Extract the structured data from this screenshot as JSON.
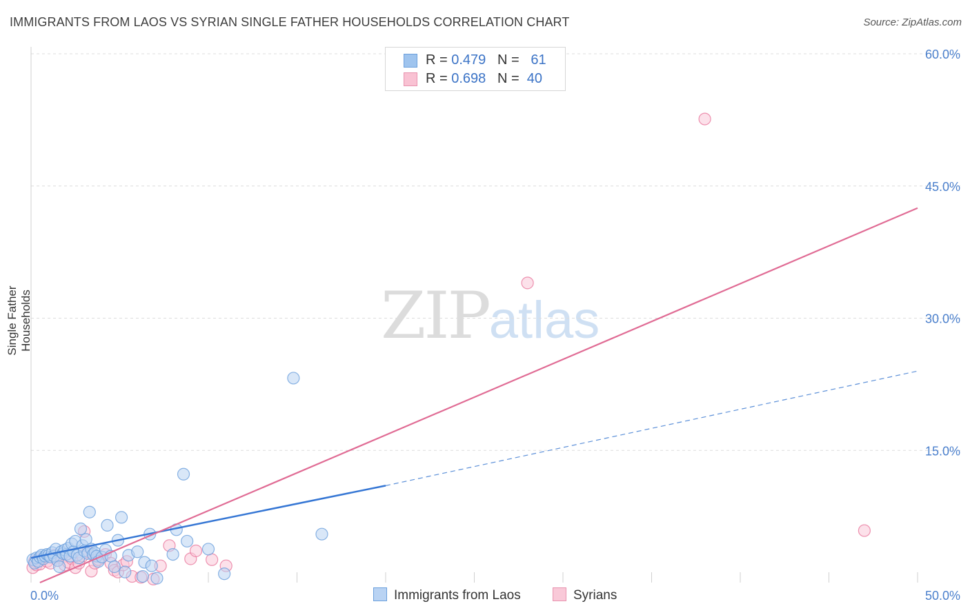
{
  "title": "IMMIGRANTS FROM LAOS VS SYRIAN SINGLE FATHER HOUSEHOLDS CORRELATION CHART",
  "source": "Source: ZipAtlas.com",
  "watermark": {
    "zip": "ZIP",
    "atlas": "atlas"
  },
  "legend": {
    "rows": [
      {
        "r_label": "R = ",
        "r_value": "0.479",
        "n_label": "N = ",
        "n_value": "61",
        "color": "#9fc4ee",
        "border": "#6a9fdc"
      },
      {
        "r_label": "R = ",
        "r_value": "0.698",
        "n_label": "N = ",
        "n_value": "40",
        "color": "#f9c2d3",
        "border": "#e892ae"
      }
    ]
  },
  "chart_data": {
    "type": "scatter",
    "title": "IMMIGRANTS FROM LAOS VS SYRIAN SINGLE FATHER HOUSEHOLDS CORRELATION CHART",
    "ylabel": "Single Father Households",
    "xlabel": "",
    "xlim": [
      0,
      50
    ],
    "ylim": [
      0,
      60
    ],
    "x_tick_labels": [
      {
        "value": 0,
        "label": "0.0%"
      },
      {
        "value": 50,
        "label": "50.0%"
      }
    ],
    "y_tick_labels": [
      {
        "value": 15,
        "label": "15.0%"
      },
      {
        "value": 30,
        "label": "30.0%"
      },
      {
        "value": 45,
        "label": "45.0%"
      },
      {
        "value": 60,
        "label": "60.0%"
      }
    ],
    "series": [
      {
        "name": "Immigrants from Laos",
        "color": "#6a9fdc",
        "fill": "#b9d3f3",
        "points": [
          [
            0.1,
            2.6
          ],
          [
            0.2,
            2.2
          ],
          [
            0.3,
            2.8
          ],
          [
            0.4,
            2.4
          ],
          [
            0.5,
            2.9
          ],
          [
            0.6,
            3.1
          ],
          [
            0.7,
            2.7
          ],
          [
            0.8,
            3.0
          ],
          [
            0.9,
            3.2
          ],
          [
            1.0,
            3.1
          ],
          [
            1.1,
            2.9
          ],
          [
            1.2,
            3.4
          ],
          [
            1.3,
            3.0
          ],
          [
            1.4,
            3.8
          ],
          [
            1.5,
            2.5
          ],
          [
            1.6,
            1.8
          ],
          [
            1.7,
            3.5
          ],
          [
            1.8,
            3.3
          ],
          [
            1.9,
            3.7
          ],
          [
            2.0,
            3.2
          ],
          [
            2.1,
            3.9
          ],
          [
            2.2,
            3.0
          ],
          [
            2.3,
            4.4
          ],
          [
            2.4,
            3.5
          ],
          [
            2.5,
            4.7
          ],
          [
            2.6,
            3.1
          ],
          [
            2.7,
            2.8
          ],
          [
            2.8,
            6.1
          ],
          [
            2.9,
            4.2
          ],
          [
            3.0,
            3.6
          ],
          [
            3.1,
            4.9
          ],
          [
            3.2,
            3.3
          ],
          [
            3.3,
            8.0
          ],
          [
            3.4,
            3.8
          ],
          [
            3.5,
            3.2
          ],
          [
            3.6,
            3.4
          ],
          [
            3.7,
            3.0
          ],
          [
            3.8,
            2.4
          ],
          [
            4.0,
            2.9
          ],
          [
            4.2,
            3.7
          ],
          [
            4.3,
            6.5
          ],
          [
            4.5,
            3.0
          ],
          [
            4.7,
            1.8
          ],
          [
            4.9,
            4.8
          ],
          [
            5.1,
            7.4
          ],
          [
            5.3,
            1.2
          ],
          [
            5.5,
            3.1
          ],
          [
            6.0,
            3.5
          ],
          [
            6.3,
            0.7
          ],
          [
            6.4,
            2.3
          ],
          [
            6.7,
            5.5
          ],
          [
            6.8,
            1.9
          ],
          [
            7.1,
            0.5
          ],
          [
            8.0,
            3.2
          ],
          [
            8.2,
            6.0
          ],
          [
            8.6,
            12.3
          ],
          [
            8.8,
            4.7
          ],
          [
            10.0,
            3.8
          ],
          [
            10.9,
            1.0
          ],
          [
            16.4,
            5.5
          ],
          [
            14.8,
            23.2
          ]
        ],
        "trend": {
          "x0": 0,
          "y0": 2.8,
          "x1": 20,
          "y1": 11.0,
          "dash_x1": 50,
          "dash_y1": 24.0
        }
      },
      {
        "name": "Syrians",
        "color": "#e8779c",
        "fill": "#f9c9d8",
        "points": [
          [
            0.1,
            1.7
          ],
          [
            0.2,
            2.4
          ],
          [
            0.3,
            2.0
          ],
          [
            0.4,
            2.6
          ],
          [
            0.5,
            2.1
          ],
          [
            0.7,
            2.8
          ],
          [
            0.9,
            2.4
          ],
          [
            1.1,
            2.2
          ],
          [
            1.3,
            3.1
          ],
          [
            1.5,
            2.5
          ],
          [
            1.7,
            2.8
          ],
          [
            1.9,
            2.0
          ],
          [
            2.1,
            2.3
          ],
          [
            2.3,
            2.7
          ],
          [
            2.5,
            1.7
          ],
          [
            2.7,
            2.2
          ],
          [
            2.9,
            3.0
          ],
          [
            3.0,
            5.8
          ],
          [
            3.2,
            3.5
          ],
          [
            3.4,
            1.3
          ],
          [
            3.6,
            2.2
          ],
          [
            3.8,
            2.6
          ],
          [
            4.2,
            3.2
          ],
          [
            4.5,
            2.2
          ],
          [
            4.7,
            1.4
          ],
          [
            4.9,
            1.2
          ],
          [
            5.2,
            2.0
          ],
          [
            5.4,
            2.4
          ],
          [
            5.7,
            0.7
          ],
          [
            6.2,
            0.6
          ],
          [
            6.9,
            0.4
          ],
          [
            7.3,
            1.9
          ],
          [
            7.8,
            4.2
          ],
          [
            9.0,
            2.7
          ],
          [
            9.3,
            3.6
          ],
          [
            10.2,
            2.6
          ],
          [
            11.0,
            1.9
          ],
          [
            28.0,
            34.0
          ],
          [
            38.0,
            52.6
          ],
          [
            47.0,
            5.9
          ]
        ],
        "trend": {
          "x0": 0.5,
          "y0": 0.0,
          "x1": 50,
          "y1": 42.5
        }
      }
    ],
    "legend_position": "top-center"
  },
  "bottom_legend": [
    "Immigrants from Laos",
    "Syrians"
  ]
}
